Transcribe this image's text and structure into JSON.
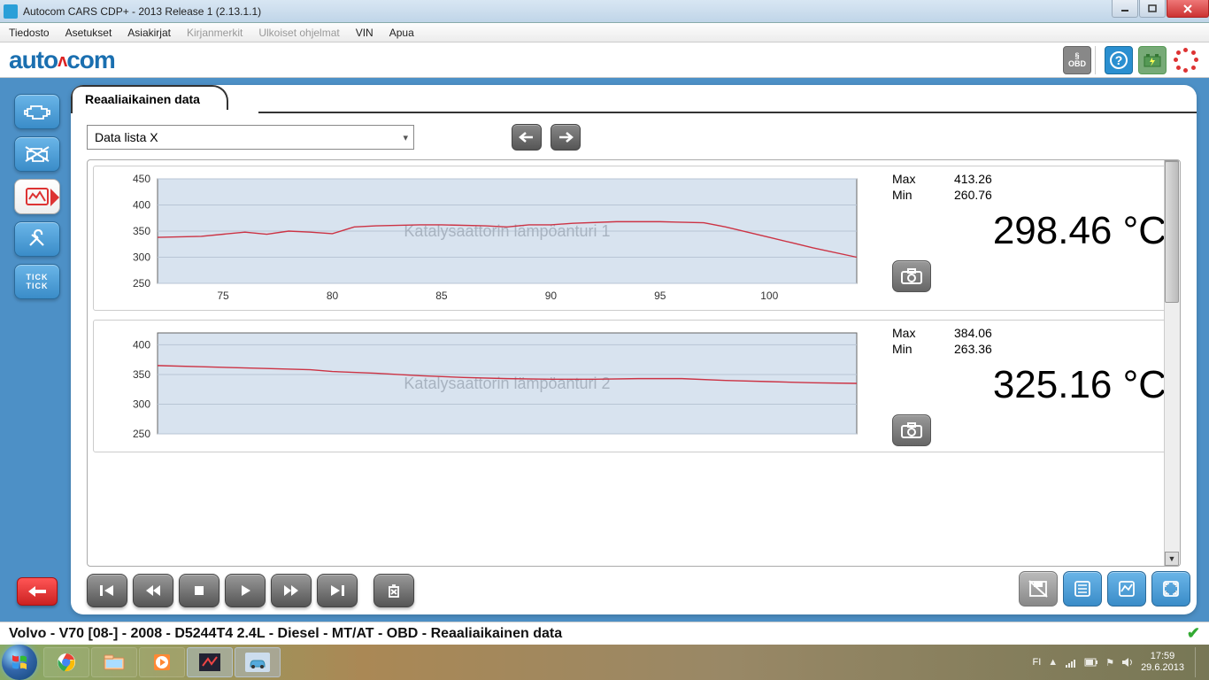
{
  "window": {
    "title": "Autocom CARS CDP+ - 2013 Release 1 (2.13.1.1)"
  },
  "menubar": {
    "items": [
      "Tiedosto",
      "Asetukset",
      "Asiakirjat",
      "Kirjanmerkit",
      "Ulkoiset ohjelmat",
      "VIN",
      "Apua"
    ],
    "disabled_indices": [
      3,
      4
    ]
  },
  "logo": {
    "part1": "auto",
    "dot": "ʌ",
    "part2": "com"
  },
  "top_tools": {
    "obd_label": "§\nOBD"
  },
  "sidebar_tick": "TICK\nTICK",
  "panel": {
    "tab_title": "Reaaliaikainen data",
    "dropdown_value": "Data lista X"
  },
  "charts_common": {
    "plot_bg": "#d8e3ef",
    "grid_color": "#b8c5d5",
    "border_color": "#666666",
    "line_color": "#cc3344",
    "watermark_color": "#a8b3c0",
    "line_width": 1.4,
    "axis_font_size": 12,
    "watermark_font_size": 18
  },
  "charts": [
    {
      "watermark": "Katalysaattorin lämpöanturi 1",
      "max_label": "Max",
      "max_value": "413.26",
      "min_label": "Min",
      "min_value": "260.76",
      "current_value": "298.46",
      "unit": "°C",
      "ymin": 250,
      "ymax": 450,
      "ytick_step": 50,
      "xmin": 72,
      "xmax": 104,
      "xticks": [
        75,
        80,
        85,
        90,
        95,
        100
      ],
      "series": [
        [
          72,
          338
        ],
        [
          74,
          340
        ],
        [
          76,
          348
        ],
        [
          77,
          344
        ],
        [
          78,
          350
        ],
        [
          79,
          348
        ],
        [
          80,
          345
        ],
        [
          81,
          358
        ],
        [
          82,
          360
        ],
        [
          84,
          362
        ],
        [
          85,
          362
        ],
        [
          87,
          360
        ],
        [
          88,
          358
        ],
        [
          89,
          362
        ],
        [
          90,
          362
        ],
        [
          91,
          365
        ],
        [
          93,
          368
        ],
        [
          95,
          368
        ],
        [
          97,
          366
        ],
        [
          98,
          358
        ],
        [
          99,
          348
        ],
        [
          100,
          338
        ],
        [
          101,
          328
        ],
        [
          102,
          318
        ],
        [
          104,
          300
        ]
      ]
    },
    {
      "watermark": "Katalysaattorin lämpöanturi 2",
      "max_label": "Max",
      "max_value": "384.06",
      "min_label": "Min",
      "min_value": "263.36",
      "current_value": "325.16",
      "unit": "°C",
      "ymin": 250,
      "ymax": 420,
      "ytick_step": 50,
      "xmin": 72,
      "xmax": 104,
      "xticks": [
        75,
        80,
        85,
        90,
        95,
        100
      ],
      "series": [
        [
          72,
          365
        ],
        [
          74,
          363
        ],
        [
          77,
          360
        ],
        [
          79,
          358
        ],
        [
          80,
          355
        ],
        [
          82,
          352
        ],
        [
          84,
          348
        ],
        [
          86,
          345
        ],
        [
          88,
          343
        ],
        [
          90,
          342
        ],
        [
          92,
          342
        ],
        [
          94,
          343
        ],
        [
          96,
          343
        ],
        [
          98,
          340
        ],
        [
          100,
          338
        ],
        [
          102,
          336
        ],
        [
          104,
          335
        ]
      ]
    }
  ],
  "status_text": "Volvo - V70 [08-] - 2008 - D5244T4 2.4L - Diesel - MT/AT - OBD - Reaaliaikainen data",
  "taskbar": {
    "lang": "FI",
    "time": "17:59",
    "date": "29.6.2013"
  },
  "colors": {
    "blue_body": "#4d90c6",
    "logo_blue": "#1a6fb0",
    "logo_red": "#d22222"
  }
}
